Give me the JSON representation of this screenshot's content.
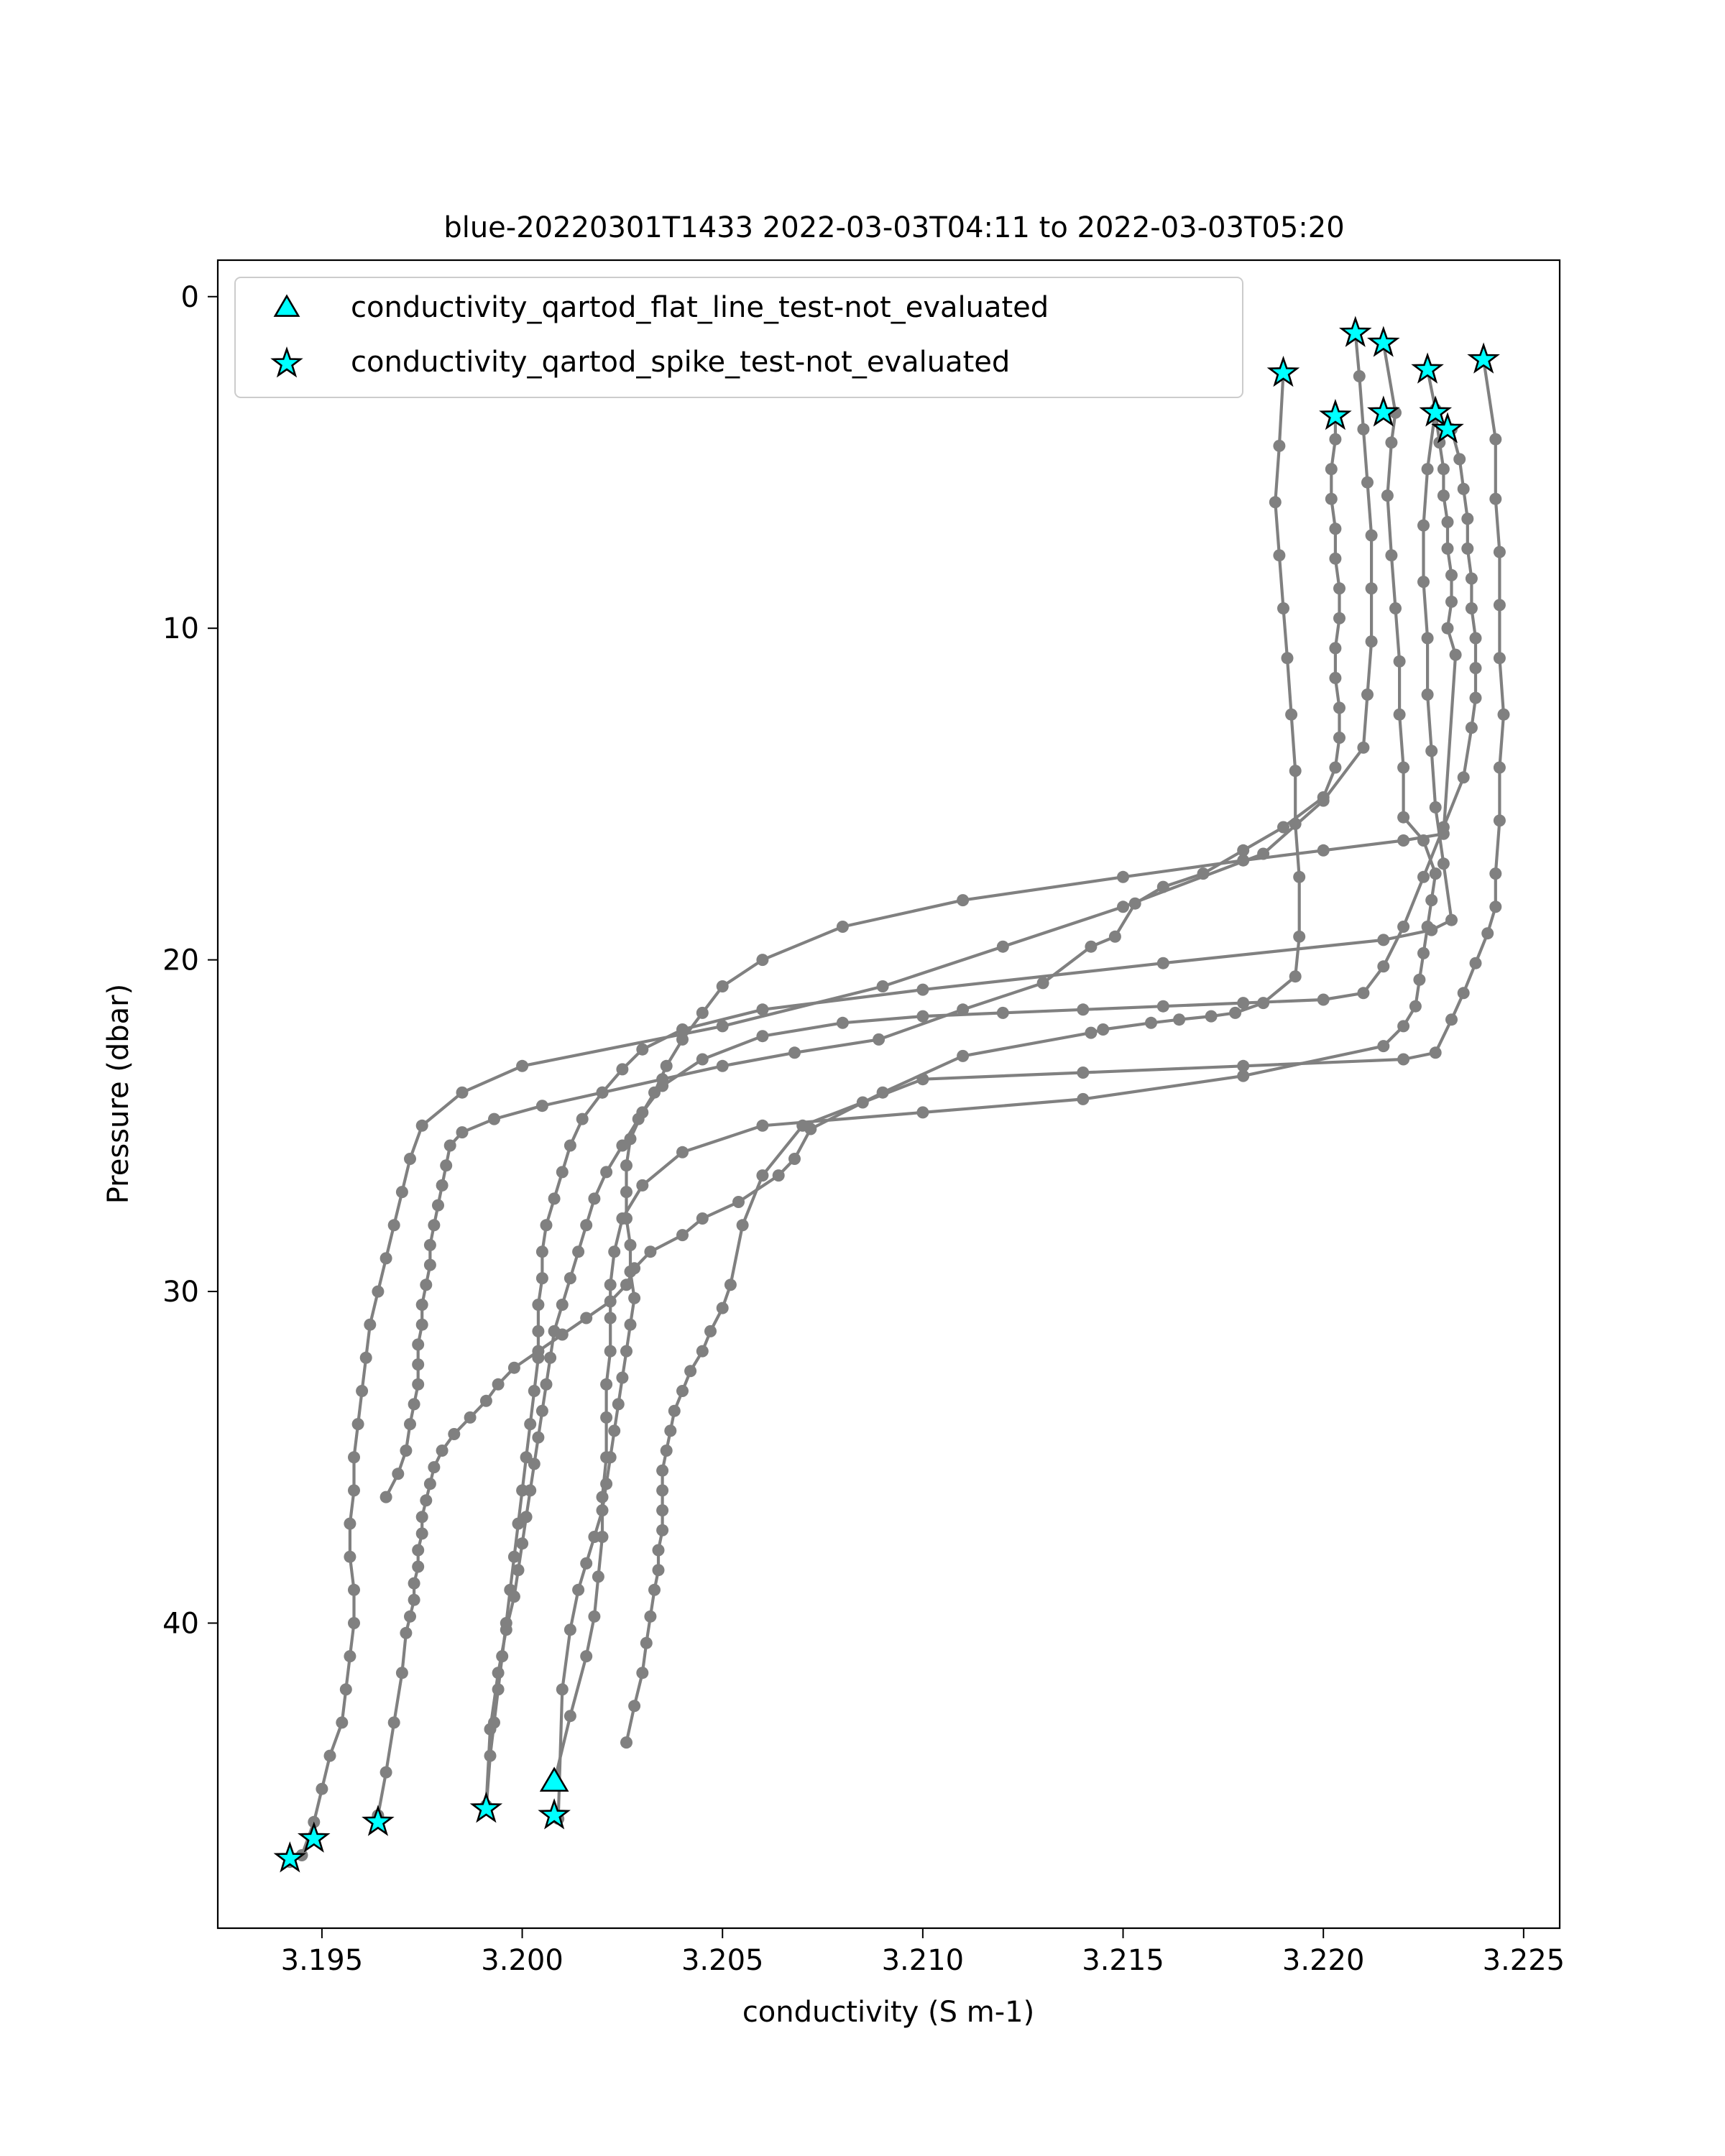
{
  "chart_data": {
    "type": "line",
    "title": "blue-20220301T1433 2022-03-03T04:11 to 2022-03-03T05:20",
    "xlabel": "conductivity (S m-1)",
    "ylabel": "Pressure (dbar)",
    "xlim": [
      3.1924,
      3.2259
    ],
    "ylim": [
      49.2,
      -1.1
    ],
    "y_inverted": true,
    "xticks": [
      3.195,
      3.2,
      3.205,
      3.21,
      3.215,
      3.22,
      3.225
    ],
    "xtick_labels": [
      "3.195",
      "3.200",
      "3.205",
      "3.210",
      "3.215",
      "3.220",
      "3.225"
    ],
    "yticks": [
      0,
      10,
      20,
      30,
      40
    ],
    "ytick_labels": [
      "0",
      "10",
      "20",
      "30",
      "40"
    ],
    "grid": false,
    "legend_position": "upper-left",
    "line_color": "#808080",
    "marker_color": "#808080",
    "flag_fill": "#00ffff",
    "flag_edge": "#000000",
    "profiles": [
      {
        "x": [
          3.219,
          3.2189,
          3.2188,
          3.2189,
          3.219,
          3.2191,
          3.2192,
          3.2193,
          3.2193,
          3.2194,
          3.2194,
          3.2193,
          3.2185,
          3.2178,
          3.2172,
          3.2164,
          3.2157,
          3.2145,
          3.2142,
          3.211,
          3.209,
          3.2072,
          3.2068,
          3.2064,
          3.2054,
          3.2045,
          3.204,
          3.2032,
          3.2028,
          3.2026,
          3.2022,
          3.2016,
          3.201,
          3.2004,
          3.1998,
          3.1994,
          3.1991,
          3.1987,
          3.1983,
          3.198,
          3.1978,
          3.1977,
          3.1976,
          3.1975,
          3.1975,
          3.1974,
          3.1974,
          3.1973,
          3.1973,
          3.1972,
          3.1971,
          3.197,
          3.1968,
          3.1966,
          3.1964
        ],
        "y": [
          2.3,
          4.5,
          6.2,
          7.8,
          9.4,
          10.9,
          12.6,
          14.3,
          15.9,
          17.5,
          19.3,
          20.5,
          21.3,
          21.6,
          21.7,
          21.8,
          21.9,
          22.1,
          22.2,
          22.9,
          24.0,
          25.1,
          26.0,
          26.5,
          27.3,
          27.8,
          28.3,
          28.8,
          29.3,
          29.8,
          30.3,
          30.8,
          31.3,
          31.8,
          32.3,
          32.8,
          33.3,
          33.8,
          34.3,
          34.8,
          35.3,
          35.8,
          36.3,
          36.8,
          37.3,
          37.8,
          38.3,
          38.8,
          39.3,
          39.8,
          40.3,
          41.5,
          43.0,
          44.5,
          45.8
        ]
      },
      {
        "x": [
          3.2203,
          3.2203,
          3.2202,
          3.2202,
          3.2203,
          3.2203,
          3.2204,
          3.2204,
          3.2203,
          3.2203,
          3.2204,
          3.2204,
          3.2203,
          3.22,
          3.219,
          3.218,
          3.217,
          3.216,
          3.2153,
          3.2148,
          3.2142,
          3.213,
          3.211,
          3.2089,
          3.2068,
          3.205,
          3.2035,
          3.202,
          3.2005,
          3.1993,
          3.1985,
          3.1982,
          3.1981,
          3.198,
          3.1979,
          3.1978,
          3.1977,
          3.1977,
          3.1976,
          3.1975,
          3.1975,
          3.1974,
          3.1974,
          3.1974,
          3.1973,
          3.1972,
          3.1971,
          3.1969,
          3.1966
        ],
        "y": [
          3.6,
          4.3,
          5.2,
          6.1,
          7.0,
          7.9,
          8.8,
          9.7,
          10.6,
          11.5,
          12.4,
          13.3,
          14.2,
          15.1,
          16.0,
          16.7,
          17.4,
          17.8,
          18.3,
          19.3,
          19.6,
          20.7,
          21.5,
          22.4,
          22.8,
          23.2,
          23.6,
          24.0,
          24.4,
          24.8,
          25.2,
          25.6,
          26.2,
          26.8,
          27.4,
          28.0,
          28.6,
          29.2,
          29.8,
          30.4,
          31.0,
          31.6,
          32.2,
          32.8,
          33.4,
          34.0,
          34.8,
          35.5,
          36.2
        ]
      },
      {
        "x": [
          3.2208,
          3.2209,
          3.221,
          3.2211,
          3.2212,
          3.2212,
          3.2212,
          3.2211,
          3.221,
          3.22,
          3.2185,
          3.215,
          3.212,
          3.209,
          3.205,
          3.2,
          3.1985,
          3.1975,
          3.1972,
          3.197,
          3.1968,
          3.1966,
          3.1964,
          3.1962,
          3.1961,
          3.196,
          3.1959,
          3.1958,
          3.1958,
          3.1957,
          3.1957,
          3.1958,
          3.1958,
          3.1957,
          3.1956,
          3.1955,
          3.1952,
          3.195,
          3.1948,
          3.1945,
          3.1942
        ],
        "y": [
          1.1,
          2.4,
          4.0,
          5.6,
          7.2,
          8.8,
          10.4,
          12.0,
          13.6,
          15.2,
          16.8,
          18.4,
          19.6,
          20.8,
          22.0,
          23.2,
          24.0,
          25.0,
          26.0,
          27.0,
          28.0,
          29.0,
          30.0,
          31.0,
          32.0,
          33.0,
          34.0,
          35.0,
          36.0,
          37.0,
          38.0,
          39.0,
          40.0,
          41.0,
          42.0,
          43.0,
          44.0,
          45.0,
          46.0,
          47.0,
          47.2
        ]
      },
      {
        "x": [
          3.2215,
          3.2218,
          3.2217,
          3.2216,
          3.2217,
          3.2218,
          3.2219,
          3.2219,
          3.222,
          3.222,
          3.2225,
          3.2228,
          3.2227,
          3.2226,
          3.2225,
          3.2224,
          3.2223,
          3.222,
          3.2215,
          3.218,
          3.214,
          3.21,
          3.206,
          3.204,
          3.203,
          3.2025,
          3.2023,
          3.2022,
          3.2022,
          3.2022,
          3.2021,
          3.2021,
          3.2021,
          3.202,
          3.202,
          3.2019,
          3.2018,
          3.2016,
          3.2012,
          3.2008
        ],
        "y": [
          1.4,
          3.5,
          4.4,
          6.0,
          7.8,
          9.4,
          11.0,
          12.6,
          14.2,
          15.7,
          16.4,
          17.4,
          18.2,
          19.0,
          19.8,
          20.6,
          21.4,
          22.0,
          22.6,
          23.5,
          24.2,
          24.6,
          25.0,
          25.8,
          26.8,
          27.8,
          28.8,
          29.8,
          30.8,
          31.8,
          32.8,
          33.8,
          35.0,
          36.2,
          37.4,
          38.6,
          39.8,
          41.0,
          42.8,
          44.8
        ]
      },
      {
        "x": [
          3.2226,
          3.2228,
          3.2226,
          3.2225,
          3.2225,
          3.2226,
          3.2226,
          3.2227,
          3.2228,
          3.223,
          3.2232,
          3.2227,
          3.2215,
          3.216,
          3.21,
          3.206,
          3.204,
          3.203,
          3.2025,
          3.202,
          3.2015,
          3.2012,
          3.201,
          3.2008,
          3.2006,
          3.2005,
          3.2005,
          3.2004,
          3.2004,
          3.2004,
          3.2003,
          3.2002,
          3.2001,
          3.2,
          3.1999,
          3.1998,
          3.1997,
          3.1996,
          3.1995,
          3.1994,
          3.1993,
          3.1992,
          3.1991
        ],
        "y": [
          2.2,
          3.4,
          5.2,
          6.9,
          8.6,
          10.3,
          12.0,
          13.7,
          15.4,
          17.1,
          18.8,
          19.1,
          19.4,
          20.1,
          20.9,
          21.5,
          22.1,
          22.7,
          23.3,
          24.0,
          24.8,
          25.6,
          26.4,
          27.2,
          28.0,
          28.8,
          29.6,
          30.4,
          31.2,
          32.0,
          33.0,
          34.0,
          35.0,
          36.0,
          37.0,
          38.0,
          39.0,
          40.0,
          41.0,
          42.0,
          43.0,
          44.0,
          45.6
        ]
      },
      {
        "x": [
          3.2228,
          3.2229,
          3.223,
          3.223,
          3.2231,
          3.2231,
          3.2232,
          3.2232,
          3.2231,
          3.2233,
          3.223,
          3.222,
          3.22,
          3.218,
          3.215,
          3.211,
          3.208,
          3.206,
          3.205,
          3.2045,
          3.204,
          3.2036,
          3.2033,
          3.2029,
          3.2025,
          3.2021,
          3.2018,
          3.2016,
          3.2014,
          3.2012,
          3.201,
          3.2008,
          3.2007,
          3.2006,
          3.2005,
          3.2004,
          3.2003,
          3.2002,
          3.2001,
          3.2,
          3.1999,
          3.1998,
          3.1996,
          3.1994,
          3.1992,
          3.1991
        ],
        "y": [
          3.5,
          4.4,
          5.2,
          6.0,
          6.8,
          7.6,
          8.4,
          9.2,
          10.0,
          10.8,
          16.2,
          16.4,
          16.7,
          17.0,
          17.5,
          18.2,
          19.0,
          20.0,
          20.8,
          21.6,
          22.4,
          23.2,
          24.0,
          24.8,
          25.6,
          26.4,
          27.2,
          28.0,
          28.8,
          29.6,
          30.4,
          31.2,
          32.0,
          32.8,
          33.6,
          34.4,
          35.2,
          36.0,
          36.8,
          37.6,
          38.4,
          39.2,
          40.2,
          41.5,
          43.2,
          45.5
        ]
      },
      {
        "x": [
          3.2232,
          3.2234,
          3.2235,
          3.2236,
          3.2236,
          3.2237,
          3.2237,
          3.2238,
          3.2238,
          3.2238,
          3.2237,
          3.2235,
          3.223,
          3.2225,
          3.222,
          3.2215,
          3.221,
          3.22,
          3.218,
          3.216,
          3.214,
          3.212,
          3.21,
          3.208,
          3.206,
          3.2045,
          3.2035,
          3.203,
          3.2027,
          3.2026,
          3.2026,
          3.2026,
          3.2027,
          3.2027,
          3.2028,
          3.2027,
          3.2026,
          3.2025,
          3.2024,
          3.2023,
          3.2022,
          3.2021,
          3.202,
          3.2018,
          3.2016,
          3.2014,
          3.2012,
          3.201,
          3.2009
        ],
        "y": [
          4.0,
          4.9,
          5.8,
          6.7,
          7.6,
          8.5,
          9.4,
          10.3,
          11.2,
          12.1,
          13.0,
          14.5,
          16.0,
          17.5,
          19.0,
          20.2,
          21.0,
          21.2,
          21.3,
          21.4,
          21.5,
          21.6,
          21.7,
          21.9,
          22.3,
          23.0,
          23.8,
          24.6,
          25.4,
          26.2,
          27.0,
          27.8,
          28.6,
          29.4,
          30.2,
          31.0,
          31.8,
          32.6,
          33.4,
          34.2,
          35.0,
          35.8,
          36.6,
          37.4,
          38.2,
          39.0,
          40.2,
          42.0,
          45.9
        ]
      },
      {
        "x": [
          3.224,
          3.2243,
          3.2243,
          3.2244,
          3.2244,
          3.2244,
          3.2245,
          3.2244,
          3.2244,
          3.2243,
          3.2243,
          3.2241,
          3.2238,
          3.2235,
          3.2232,
          3.2228,
          3.222,
          3.218,
          3.214,
          3.21,
          3.2085,
          3.207,
          3.206,
          3.2055,
          3.2052,
          3.205,
          3.2047,
          3.2045,
          3.2042,
          3.204,
          3.2038,
          3.2037,
          3.2036,
          3.2035,
          3.2035,
          3.2035,
          3.2035,
          3.2034,
          3.2034,
          3.2033,
          3.2032,
          3.2031,
          3.203,
          3.2028,
          3.2026
        ],
        "y": [
          1.9,
          4.3,
          6.1,
          7.7,
          9.3,
          10.9,
          12.6,
          14.2,
          15.8,
          17.4,
          18.4,
          19.2,
          20.1,
          21.0,
          21.8,
          22.8,
          23.0,
          23.2,
          23.4,
          23.6,
          24.3,
          25.0,
          26.5,
          28.0,
          29.8,
          30.5,
          31.2,
          31.8,
          32.4,
          33.0,
          33.6,
          34.2,
          34.8,
          35.4,
          36.0,
          36.6,
          37.2,
          37.8,
          38.4,
          39.0,
          39.8,
          40.6,
          41.5,
          42.5,
          43.6
        ]
      }
    ],
    "series": [
      {
        "name": "conductivity_qartod_flat_line_test-not_evaluated",
        "marker": "triangle",
        "x": [
          3.2008
        ],
        "y": [
          44.8
        ]
      },
      {
        "name": "conductivity_qartod_spike_test-not_evaluated",
        "marker": "star",
        "x": [
          3.219,
          3.2203,
          3.2208,
          3.2215,
          3.2215,
          3.2226,
          3.2228,
          3.2231,
          3.224,
          3.1942,
          3.1948,
          3.1964,
          3.1991,
          3.2008
        ],
        "y": [
          2.3,
          3.6,
          1.1,
          1.4,
          3.5,
          2.2,
          3.5,
          4.0,
          1.9,
          47.1,
          46.5,
          46.0,
          45.6,
          45.8
        ]
      }
    ]
  }
}
